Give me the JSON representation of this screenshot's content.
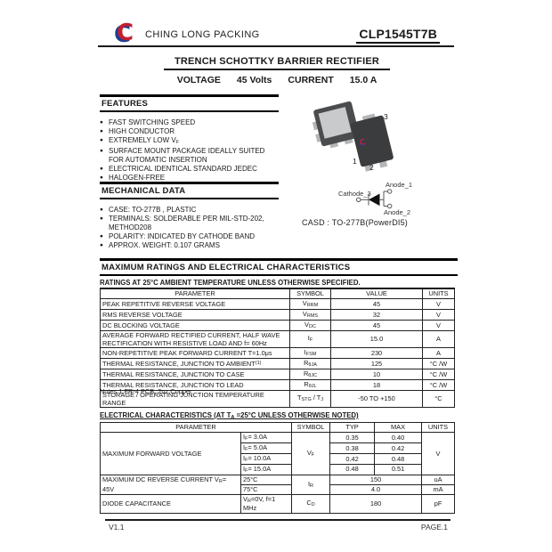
{
  "header": {
    "company": "CHING LONG PACKING",
    "part_number": "CLP1545T7B",
    "title": "TRENCH SCHOTTKY BARRIER RECTIFIER",
    "voltage_label": "VOLTAGE",
    "voltage_value": "45 Volts",
    "current_label": "CURRENT",
    "current_value": "15.0 A"
  },
  "features": {
    "heading": "FEATURES",
    "items": [
      "FAST SWITCHING SPEED",
      "HIGH CONDUCTOR",
      "EXTREMELY LOW V_{F}",
      "SURFACE MOUNT PACKAGE IDEALLY SUITED FOR AUTOMATIC INSERTION",
      "ELECTRICAL IDENTICAL STANDARD JEDEC",
      "HALOGEN-FREE"
    ]
  },
  "mechanical": {
    "heading": "MECHANICAL DATA",
    "items": [
      "CASE:   TO-277B , PLASTIC",
      "TERMINALS: SOLDERABLE PER MIL-STD-202, METHOD208",
      "POLARITY: INDICATED BY CATHODE BAND",
      "APPROX. WEIGHT: 0.107 GRAMS"
    ]
  },
  "package": {
    "pin_labels": [
      "1",
      "2",
      "3"
    ],
    "schematic": {
      "anode1": "Anode_1",
      "cathode": "Cathode_3",
      "anode2": "Anode_2"
    },
    "case_label": "CASD : TO-277B(PowerDI5)"
  },
  "ratings": {
    "heading": "MAXIMUM RATINGS AND ELECTRICAL CHARACTERISTICS",
    "condition_note": "RATINGS AT 25°C AMBIENT TEMPERATURE UNLESS OTHERWISE SPECIFIED.",
    "columns": [
      "PARAMETER",
      "SYMBOL",
      "VALUE",
      "UNITS"
    ],
    "rows": [
      {
        "parameter": "PEAK REPETITIVE REVERSE VOLTAGE",
        "symbol": "V_{RRM}",
        "value": "45",
        "units": "V"
      },
      {
        "parameter": "RMS REVERSE VOLTAGE",
        "symbol": "V_{RMS}",
        "value": "32",
        "units": "V"
      },
      {
        "parameter": "DC BLOCKING VOLTAGE",
        "symbol": "V_{DC}",
        "value": "45",
        "units": "V"
      },
      {
        "parameter": "AVERAGE FORWARD RECTIFIED CURRENT, HALF WAVE RECTIFICATION WITH RESISTIVE LOAD AND f= 60Hz",
        "symbol": "I_{F}",
        "value": "15.0",
        "units": "A"
      },
      {
        "parameter": "NON-REPETITIVE PEAK FORWARD CURRENT T=1.0μs",
        "symbol": "I_{FSM}",
        "value": "230",
        "units": "A"
      },
      {
        "parameter": "THERMAL RESISTANCE, JUNCTION TO AMBIENT^{(1)}",
        "symbol": "R_{θJA}",
        "value": "125",
        "units": "°C /W"
      },
      {
        "parameter": "THERMAL RESISTANCE, JUNCTION TO CASE",
        "symbol": "R_{θJC}",
        "value": "10",
        "units": "°C /W"
      },
      {
        "parameter": "THERMAL RESISTANCE, JUNCTION TO LEAD",
        "symbol": "R_{θJL}",
        "value": "18",
        "units": "°C /W"
      },
      {
        "parameter": "STORAGE / OPERATING JUNCTION TEMPERATURE RANGE",
        "symbol": "T_{STG} / T_{J}",
        "value": "-50 TO +150",
        "units": "°C"
      }
    ],
    "notes": "Notes 1:FR-4 PCB, 2oz.Copper"
  },
  "electrical": {
    "heading": "ELECTRICAL CHARACTERISTICS (AT T_{A} =25°C UNLESS OTHERWISE NOTED)",
    "columns": [
      "PARAMETER",
      "SYMBOL",
      "TYP",
      "MAX",
      "UNITS"
    ],
    "groups": [
      {
        "parameter": "MAXIMUM FORWARD VOLTAGE",
        "symbol": "V_{F}",
        "units": "V",
        "sub_rows": [
          {
            "condition": "I_{F}= 3.0A",
            "typ": "0.35",
            "max": "0.40"
          },
          {
            "condition": "I_{F}= 5.0A",
            "typ": "0.38",
            "max": "0.42"
          },
          {
            "condition": "I_{F}= 10.0A",
            "typ": "0.42",
            "max": "0.48"
          },
          {
            "condition": "I_{F}= 15.0A",
            "typ": "0.48",
            "max": "0.51"
          }
        ]
      },
      {
        "parameter": "MAXIMUM DC REVERSE CURRENT V_{R}= 45V",
        "symbol": "I_{R}",
        "sub_rows": [
          {
            "condition": "25°C",
            "typmax": "150",
            "units": "uA"
          },
          {
            "condition": "75°C",
            "typmax": "4.0",
            "units": "mA"
          }
        ]
      },
      {
        "parameter": "DIODE CAPACITANCE",
        "symbol": "C_{D}",
        "sub_rows": [
          {
            "condition": "V_{R}=0V, f=1 MHz",
            "typmax": "180",
            "units": "pF"
          }
        ]
      }
    ]
  },
  "footer": {
    "version": "V1.1",
    "page_label": "PAGE.1"
  },
  "colors": {
    "logo_red": "#c21f2f",
    "logo_blue": "#1c3f94",
    "package_body": "#3a3c3e",
    "package_pad": "#c9cacc",
    "lead_gray": "#b4b6b8"
  }
}
